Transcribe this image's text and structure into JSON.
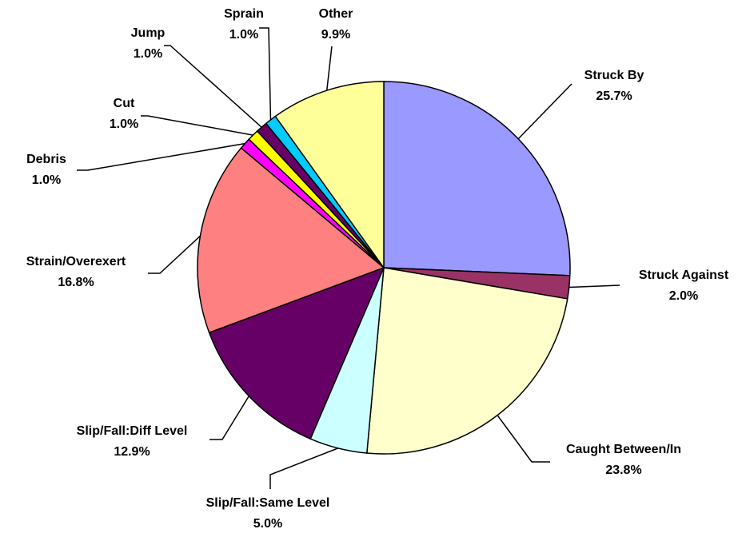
{
  "chart_data": {
    "type": "pie",
    "categories": [
      "Struck By",
      "Struck Against",
      "Caught Between/In",
      "Slip/Fall:Same Level",
      "Slip/Fall:Diff Level",
      "Strain/Overexert",
      "Debris",
      "Cut",
      "Jump",
      "Sprain",
      "Other"
    ],
    "values": [
      25.7,
      2.0,
      23.8,
      5.0,
      12.9,
      16.8,
      1.0,
      1.0,
      1.0,
      1.0,
      9.9
    ],
    "value_labels": [
      "25.7%",
      "2.0%",
      "23.8%",
      "5.0%",
      "12.9%",
      "16.8%",
      "1.0%",
      "1.0%",
      "1.0%",
      "1.0%",
      "9.9%"
    ],
    "colors": [
      "#9999ff",
      "#993366",
      "#ffffcc",
      "#ccffff",
      "#660066",
      "#ff8080",
      "#ff00ff",
      "#ffff00",
      "#660066",
      "#00ccff",
      "#ffff99"
    ]
  }
}
